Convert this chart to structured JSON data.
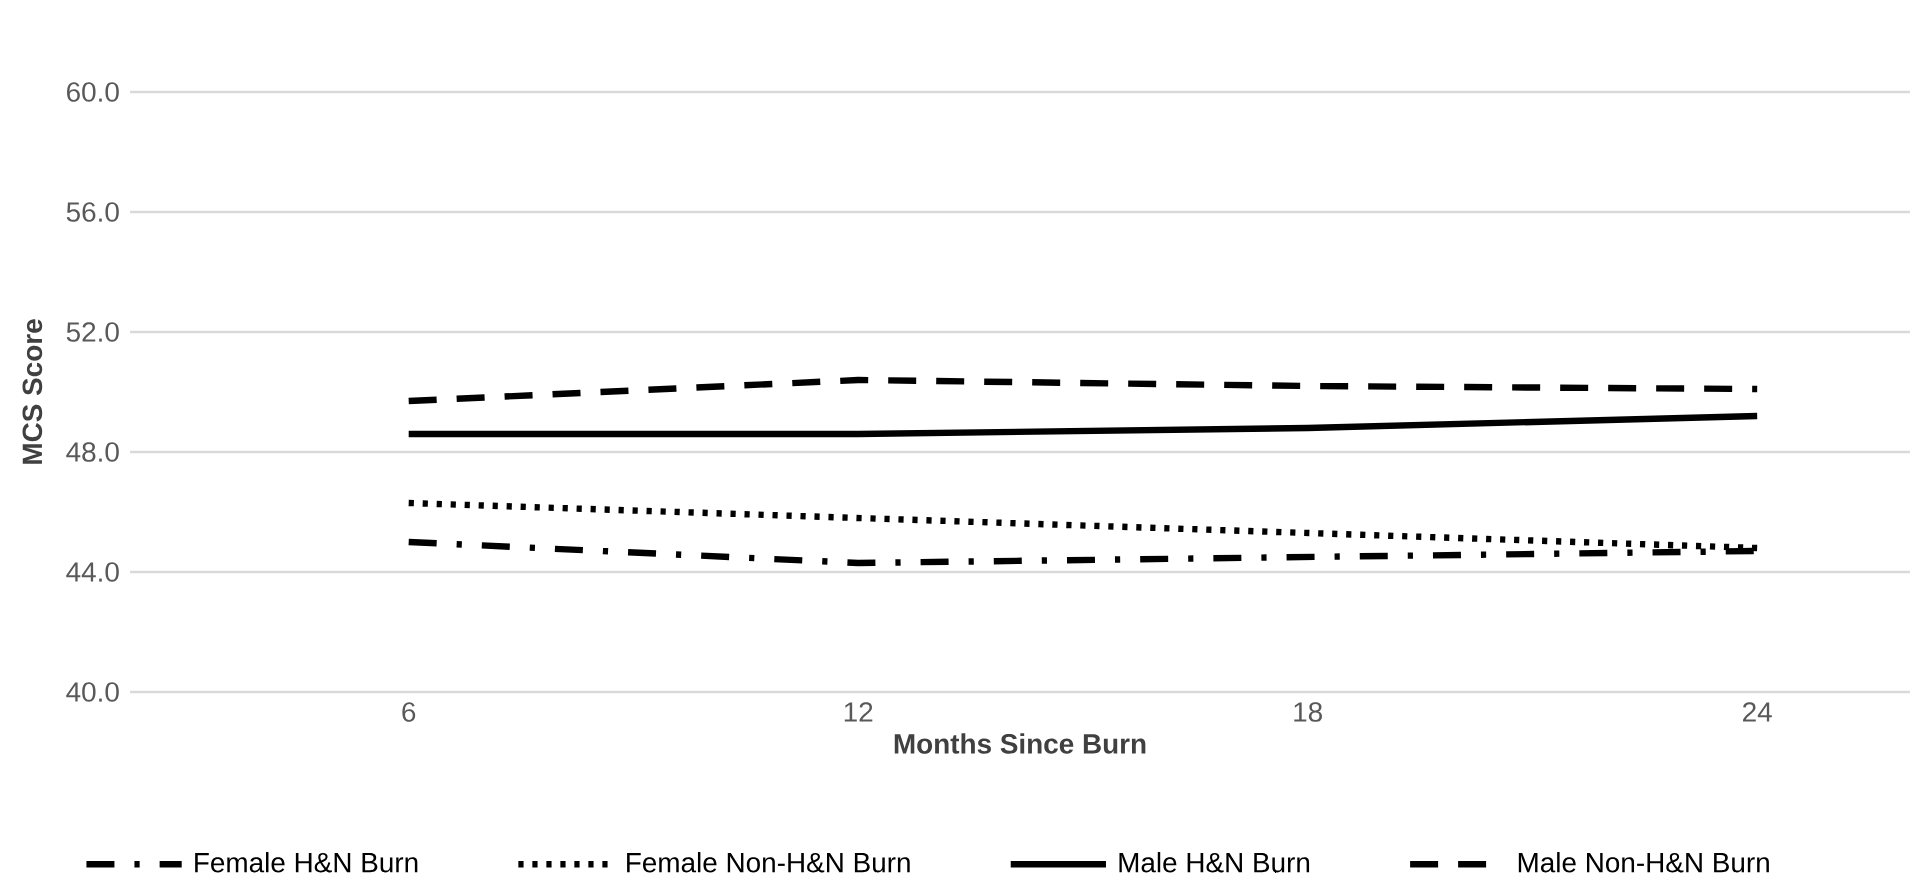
{
  "chart_data": {
    "type": "line",
    "xlabel": "Months Since Burn",
    "ylabel": "MCS Score",
    "categories": [
      "6",
      "12",
      "18",
      "24"
    ],
    "series": [
      {
        "name": "Female H&N Burn",
        "color": "#000000",
        "line_style": "dashdot",
        "values": [
          45.0,
          44.3,
          44.5,
          44.7
        ]
      },
      {
        "name": "Female Non-H&N Burn",
        "color": "#000000",
        "line_style": "dotted",
        "values": [
          46.3,
          45.8,
          45.3,
          44.8
        ]
      },
      {
        "name": "Male H&N Burn",
        "color": "#000000",
        "line_style": "solid",
        "values": [
          48.6,
          48.6,
          48.8,
          49.2
        ]
      },
      {
        "name": "Male Non-H&N Burn",
        "color": "#000000",
        "line_style": "dashed",
        "values": [
          49.7,
          50.4,
          50.2,
          50.1
        ]
      }
    ],
    "ylim": [
      40,
      60
    ],
    "yticks": [
      {
        "value": 40,
        "label": "40.0"
      },
      {
        "value": 44,
        "label": "44.0"
      },
      {
        "value": 48,
        "label": "48.0"
      },
      {
        "value": 52,
        "label": "52.0"
      },
      {
        "value": 56,
        "label": "56.0"
      },
      {
        "value": 60,
        "label": "60.0"
      }
    ],
    "grid": "y",
    "legend": "bottom",
    "marker": "none"
  }
}
